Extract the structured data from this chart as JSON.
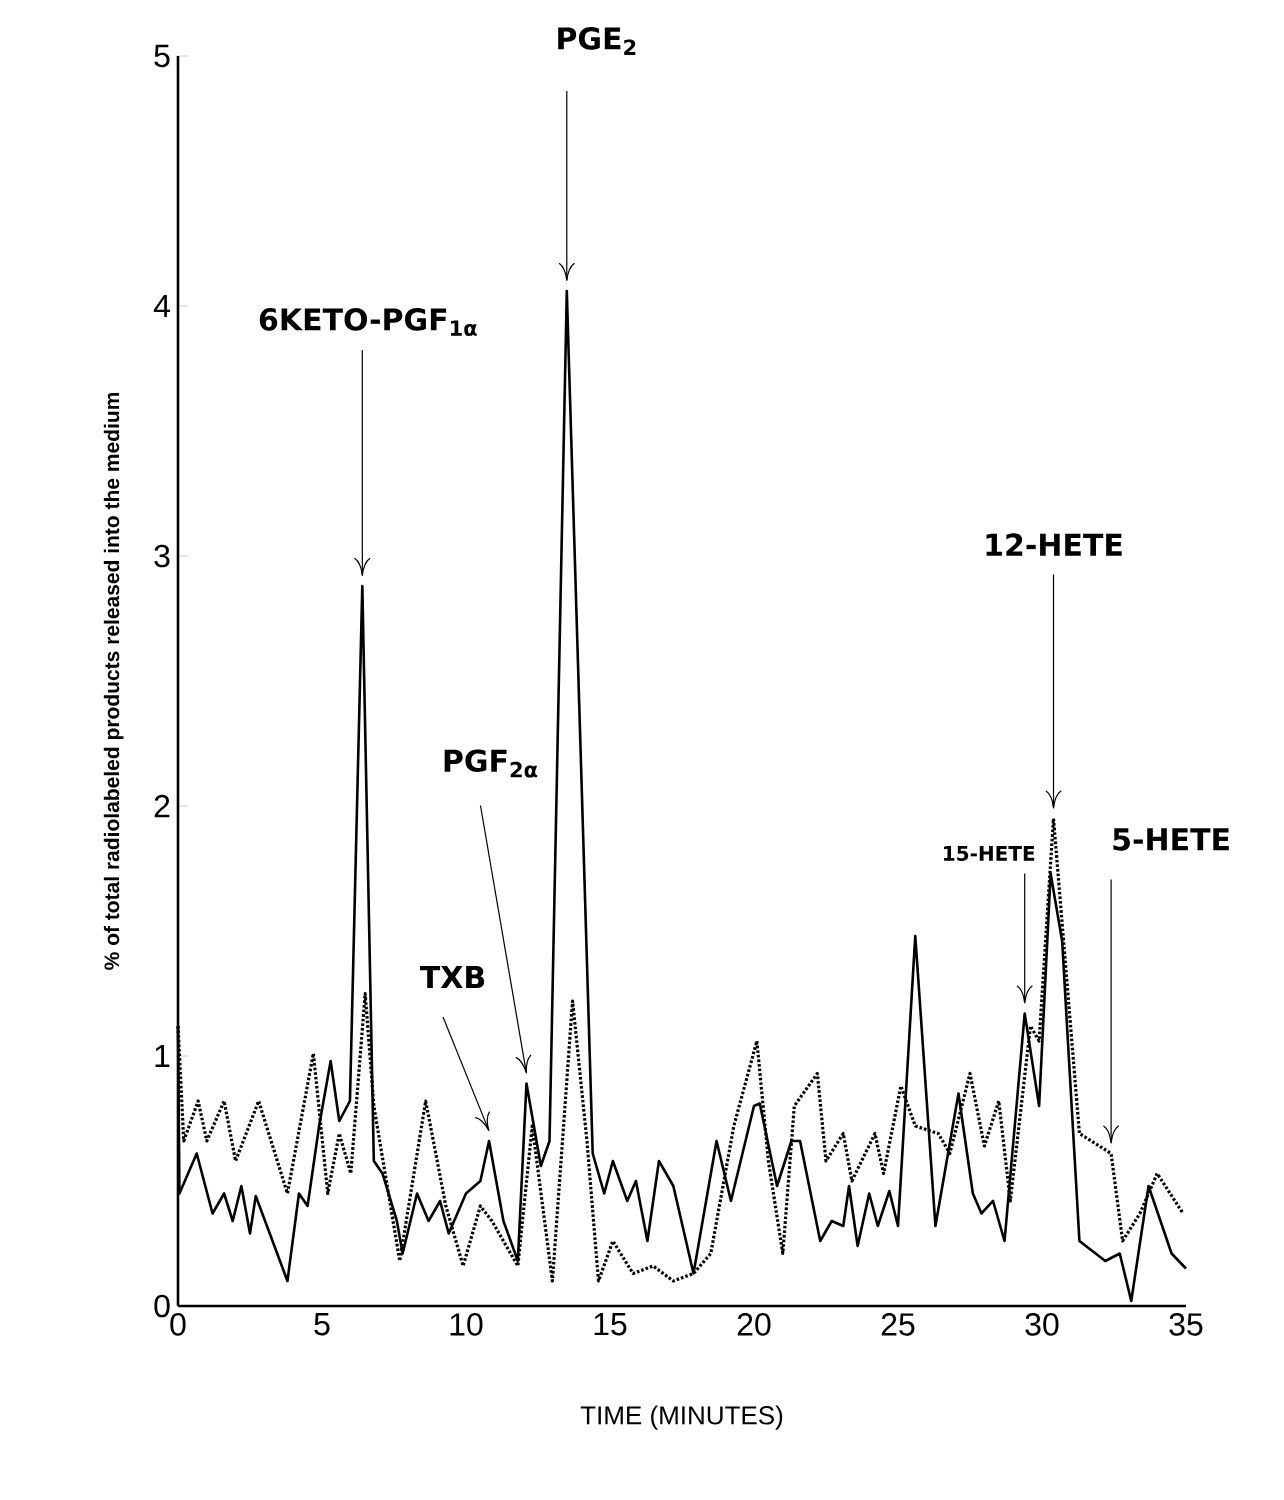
{
  "chart_data": {
    "type": "line",
    "xlabel": "TIME (MINUTES)",
    "ylabel": "% of total radiolabeled products released into the medium",
    "xlim": [
      0,
      35
    ],
    "ylim": [
      0,
      5
    ],
    "xticks": [
      0,
      5,
      10,
      15,
      20,
      25,
      30,
      35
    ],
    "yticks": [
      0,
      1,
      2,
      3,
      4,
      5
    ],
    "grid": false,
    "marker": "none",
    "series": [
      {
        "color": "#000000",
        "line_style": "solid",
        "x": [
          0,
          0.05,
          0.65,
          1.2,
          1.6,
          1.9,
          2.2,
          2.5,
          2.7,
          3.8,
          4.2,
          4.5,
          4.9,
          5.3,
          5.6,
          5.97,
          6.4,
          6.8,
          7.1,
          7.6,
          7.8,
          8.3,
          8.7,
          9.1,
          9.4,
          10.0,
          10.5,
          10.8,
          11.3,
          11.8,
          12.1,
          12.6,
          12.9,
          13.5,
          14.4,
          14.8,
          15.1,
          15.6,
          15.9,
          16.3,
          16.7,
          17.2,
          17.9,
          18.7,
          19.2,
          20.0,
          20.2,
          20.8,
          21.3,
          21.6,
          22.3,
          22.7,
          23.1,
          23.3,
          23.6,
          24.0,
          24.3,
          24.7,
          25.0,
          25.6,
          26.3,
          27.1,
          27.6,
          27.9,
          28.3,
          28.7,
          29.4,
          29.9,
          30.3,
          30.7,
          31.3,
          32.2,
          32.7,
          33.1,
          33.7,
          34.5,
          35.0
        ],
        "values": [
          1.12,
          0.45,
          0.61,
          0.37,
          0.45,
          0.34,
          0.48,
          0.29,
          0.44,
          0.1,
          0.45,
          0.4,
          0.72,
          0.98,
          0.74,
          0.82,
          2.88,
          0.58,
          0.53,
          0.34,
          0.21,
          0.45,
          0.34,
          0.42,
          0.29,
          0.45,
          0.5,
          0.66,
          0.34,
          0.18,
          0.89,
          0.56,
          0.66,
          4.06,
          0.61,
          0.45,
          0.58,
          0.42,
          0.5,
          0.26,
          0.58,
          0.48,
          0.13,
          0.66,
          0.42,
          0.8,
          0.81,
          0.48,
          0.66,
          0.66,
          0.26,
          0.34,
          0.32,
          0.48,
          0.24,
          0.45,
          0.32,
          0.46,
          0.32,
          1.48,
          0.32,
          0.85,
          0.45,
          0.37,
          0.42,
          0.26,
          1.17,
          0.8,
          1.73,
          1.46,
          0.26,
          0.18,
          0.21,
          0.02,
          0.48,
          0.21,
          0.15
        ]
      },
      {
        "color": "#000000",
        "line_style": "dotted",
        "x": [
          0,
          0.2,
          0.7,
          1.0,
          1.6,
          2.0,
          2.8,
          3.8,
          4.7,
          5.2,
          5.6,
          6.0,
          6.5,
          6.8,
          7.7,
          8.6,
          9.3,
          9.9,
          10.5,
          10.9,
          11.8,
          12.3,
          13.0,
          13.7,
          14.2,
          14.6,
          15.1,
          15.8,
          16.5,
          17.2,
          17.9,
          18.5,
          19.3,
          20.1,
          20.5,
          21.0,
          21.4,
          22.2,
          22.5,
          23.1,
          23.4,
          24.2,
          24.5,
          25.1,
          25.6,
          26.4,
          26.8,
          27.5,
          28.0,
          28.5,
          28.9,
          29.6,
          29.9,
          30.4,
          31.3,
          32.4,
          32.8,
          33.4,
          34.0,
          34.9
        ],
        "values": [
          1.12,
          0.66,
          0.82,
          0.66,
          0.82,
          0.58,
          0.82,
          0.45,
          1.01,
          0.45,
          0.69,
          0.53,
          1.25,
          0.8,
          0.18,
          0.82,
          0.4,
          0.16,
          0.4,
          0.34,
          0.16,
          0.72,
          0.1,
          1.22,
          0.66,
          0.1,
          0.26,
          0.13,
          0.16,
          0.1,
          0.13,
          0.21,
          0.72,
          1.06,
          0.58,
          0.21,
          0.8,
          0.93,
          0.58,
          0.69,
          0.5,
          0.69,
          0.53,
          0.88,
          0.72,
          0.69,
          0.61,
          0.93,
          0.64,
          0.82,
          0.42,
          1.12,
          1.06,
          1.95,
          0.69,
          0.61,
          0.26,
          0.37,
          0.53,
          0.37
        ]
      }
    ],
    "annotations": [
      {
        "text": "6KETO-PGF$_{1α}$",
        "x": 6.4,
        "y": 2.88
      },
      {
        "text": "PGE$_{2}$",
        "x": 13.5,
        "y": 4.06
      },
      {
        "text": "PGF$_{2α}$",
        "x": 12.1,
        "y": 0.89
      },
      {
        "text": "TXB",
        "x": 10.8,
        "y": 0.66
      },
      {
        "text": "15-HETE",
        "x": 29.4,
        "y": 1.17
      },
      {
        "text": "12-HETE",
        "x": 30.4,
        "y": 1.95
      },
      {
        "text": "5-HETE",
        "x": 32.4,
        "y": 0.61
      }
    ]
  }
}
